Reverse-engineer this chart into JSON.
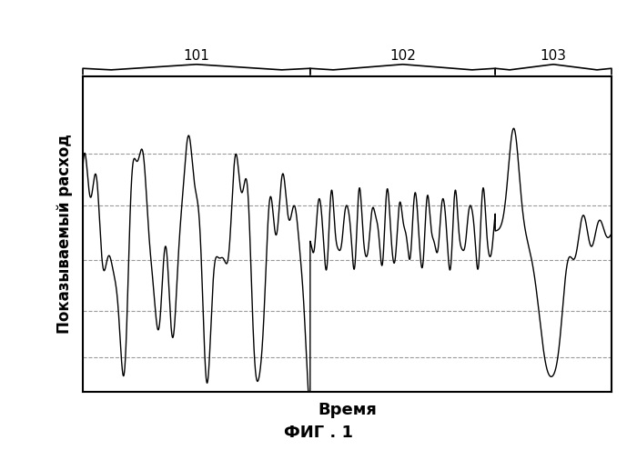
{
  "title": "",
  "xlabel": "Время",
  "ylabel": "Показываемый расход",
  "caption": "ФИГ . 1",
  "figsize": [
    7.0,
    4.95
  ],
  "dpi": 100,
  "xlim": [
    0,
    1000
  ],
  "ylim": [
    -5.8,
    5.2
  ],
  "yticks": [
    -4.6,
    -3.0,
    -1.2,
    0.7,
    2.5
  ],
  "background_color": "#ffffff",
  "grid_color": "#888888",
  "line_color": "#000000",
  "region_labels": [
    "101",
    "102",
    "103"
  ],
  "region_starts": [
    0,
    430,
    780
  ],
  "region_ends": [
    430,
    780,
    1000
  ]
}
